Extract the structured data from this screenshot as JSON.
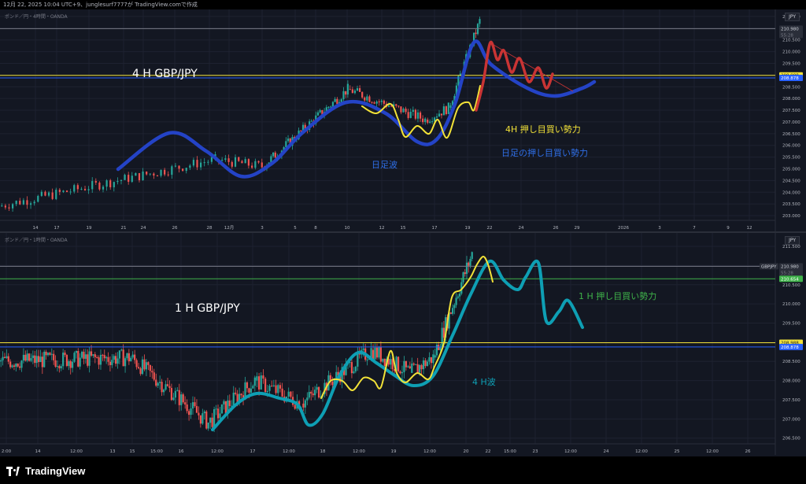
{
  "header": {
    "caption": "12月 22, 2025 10:04 UTC+9、junglesurf7777が TradingView.comで作成"
  },
  "footer": {
    "brand": "TradingView"
  },
  "colors": {
    "background": "#131722",
    "up_candle": "#26a69a",
    "down_candle": "#ef5350",
    "blue_wave": "#2443c6",
    "teal_wave": "#0e9fb4",
    "yellow_wave": "#f2e238",
    "red_wave": "#c93434",
    "label_yellow": "#f2e238",
    "label_blue": "#2f6fe8",
    "label_green": "#3fb24a"
  },
  "chart_data": [
    {
      "type": "candlestick",
      "symbol": "ポンド／円・4時間・OANDA",
      "currency": "JPY",
      "x_tick_labels": [
        "14",
        "17",
        "19",
        "21",
        "24",
        "26",
        "28",
        "12月",
        "3",
        "5",
        "8",
        "10",
        "12",
        "15",
        "17",
        "19",
        "22",
        "24",
        "26",
        "29",
        "2026",
        "3",
        "7",
        "9",
        "12"
      ],
      "y_tick_labels": [
        "211.500",
        "211.000",
        "210.500",
        "210.000",
        "209.500",
        "209.000",
        "208.500",
        "208.000",
        "207.500",
        "207.000",
        "206.500",
        "206.000",
        "205.500",
        "205.000",
        "204.500",
        "204.000",
        "203.500",
        "203.000"
      ],
      "ylim": [
        202.8,
        211.8
      ],
      "price_tags": [
        {
          "label": "210.980",
          "sub": "55:28",
          "value": 210.98,
          "bg": "#2a2e39",
          "fg": "#d1d4dc"
        },
        {
          "label": "208.988",
          "value": 208.988,
          "bg": "#f2e238",
          "fg": "#131722"
        },
        {
          "label": "208.878",
          "value": 208.878,
          "bg": "#2962ff",
          "fg": "#ffffff"
        }
      ],
      "horizontal_lines": [
        {
          "value": 208.988,
          "color": "#f2e238"
        },
        {
          "value": 208.878,
          "color": "#2962ff"
        },
        {
          "value": 210.98,
          "color": "#787b86"
        }
      ],
      "candles": [
        {
          "x": [
            0.0,
            0.28
          ],
          "y": [
            203.4,
            205.4
          ],
          "count": 60
        },
        {
          "x": [
            0.28,
            0.34
          ],
          "y": [
            205.4,
            205.1
          ],
          "count": 14
        },
        {
          "x": [
            0.34,
            0.45
          ],
          "y": [
            205.1,
            208.4
          ],
          "count": 40
        },
        {
          "x": [
            0.45,
            0.55
          ],
          "y": [
            208.4,
            207.1
          ],
          "count": 32
        },
        {
          "x": [
            0.55,
            0.58
          ],
          "y": [
            207.1,
            207.6
          ],
          "count": 10
        },
        {
          "x": [
            0.58,
            0.62
          ],
          "y": [
            207.6,
            211.3
          ],
          "count": 16
        }
      ],
      "annotations": [
        {
          "text": "4 H GBP/JPY",
          "color": "#ffffff",
          "size": 14
        },
        {
          "text": "日足波",
          "color": "#2f6fe8",
          "size": 11
        },
        {
          "text": "4H 押し目買い勢力",
          "color": "#f2e238",
          "size": 11
        },
        {
          "text": "日足の押し目買い勢力",
          "color": "#2f6fe8",
          "size": 11
        }
      ]
    },
    {
      "type": "candlestick",
      "symbol": "ポンド／円・1時間・OANDA",
      "currency": "JPY",
      "x_tick_labels": [
        "2:00",
        "14",
        "12:00",
        "13",
        "15",
        "15:00",
        "16",
        "12:00",
        "17",
        "12:00",
        "18",
        "12:00",
        "19",
        "12:00",
        "20",
        "22",
        "15:00",
        "23",
        "12:00",
        "24",
        "12:00",
        "25",
        "12:00",
        "26"
      ],
      "y_tick_labels": [
        "211.500",
        "211.000",
        "210.500",
        "210.000",
        "209.500",
        "209.000",
        "208.500",
        "208.000",
        "207.500",
        "207.000",
        "206.500"
      ],
      "ylim": [
        206.35,
        211.85
      ],
      "price_tags": [
        {
          "label": "210.980",
          "sub": "55:28",
          "value": 210.98,
          "bg": "#2a2e39",
          "fg": "#d1d4dc",
          "prefix": "GBPJPY"
        },
        {
          "label": "210.654",
          "value": 210.654,
          "bg": "#3fb24a",
          "fg": "#ffffff"
        },
        {
          "label": "208.988",
          "value": 208.988,
          "bg": "#f2e238",
          "fg": "#131722"
        },
        {
          "label": "208.878",
          "value": 208.878,
          "bg": "#2962ff",
          "fg": "#ffffff"
        }
      ],
      "horizontal_lines": [
        {
          "value": 210.654,
          "color": "#3fb24a"
        },
        {
          "value": 208.988,
          "color": "#f2e238"
        },
        {
          "value": 208.878,
          "color": "#2962ff"
        },
        {
          "value": 210.98,
          "color": "#787b86"
        }
      ],
      "candles": [
        {
          "x": [
            0.0,
            0.17
          ],
          "y": [
            208.5,
            208.6
          ],
          "count": 70
        },
        {
          "x": [
            0.17,
            0.27
          ],
          "y": [
            208.6,
            206.9
          ],
          "count": 40
        },
        {
          "x": [
            0.27,
            0.33
          ],
          "y": [
            206.9,
            208.0
          ],
          "count": 24
        },
        {
          "x": [
            0.33,
            0.39
          ],
          "y": [
            208.0,
            207.4
          ],
          "count": 22
        },
        {
          "x": [
            0.39,
            0.48
          ],
          "y": [
            207.4,
            208.8
          ],
          "count": 36
        },
        {
          "x": [
            0.48,
            0.53
          ],
          "y": [
            208.8,
            208.2
          ],
          "count": 20
        },
        {
          "x": [
            0.53,
            0.56
          ],
          "y": [
            208.2,
            208.6
          ],
          "count": 12
        },
        {
          "x": [
            0.56,
            0.61
          ],
          "y": [
            208.6,
            211.3
          ],
          "count": 22
        }
      ],
      "annotations": [
        {
          "text": "1 H  GBP/JPY",
          "color": "#ffffff",
          "size": 14
        },
        {
          "text": "4 H波",
          "color": "#0e9fb4",
          "size": 11
        },
        {
          "text": "1 H   押し目買い勢力",
          "color": "#3fb24a",
          "size": 11
        }
      ]
    }
  ]
}
